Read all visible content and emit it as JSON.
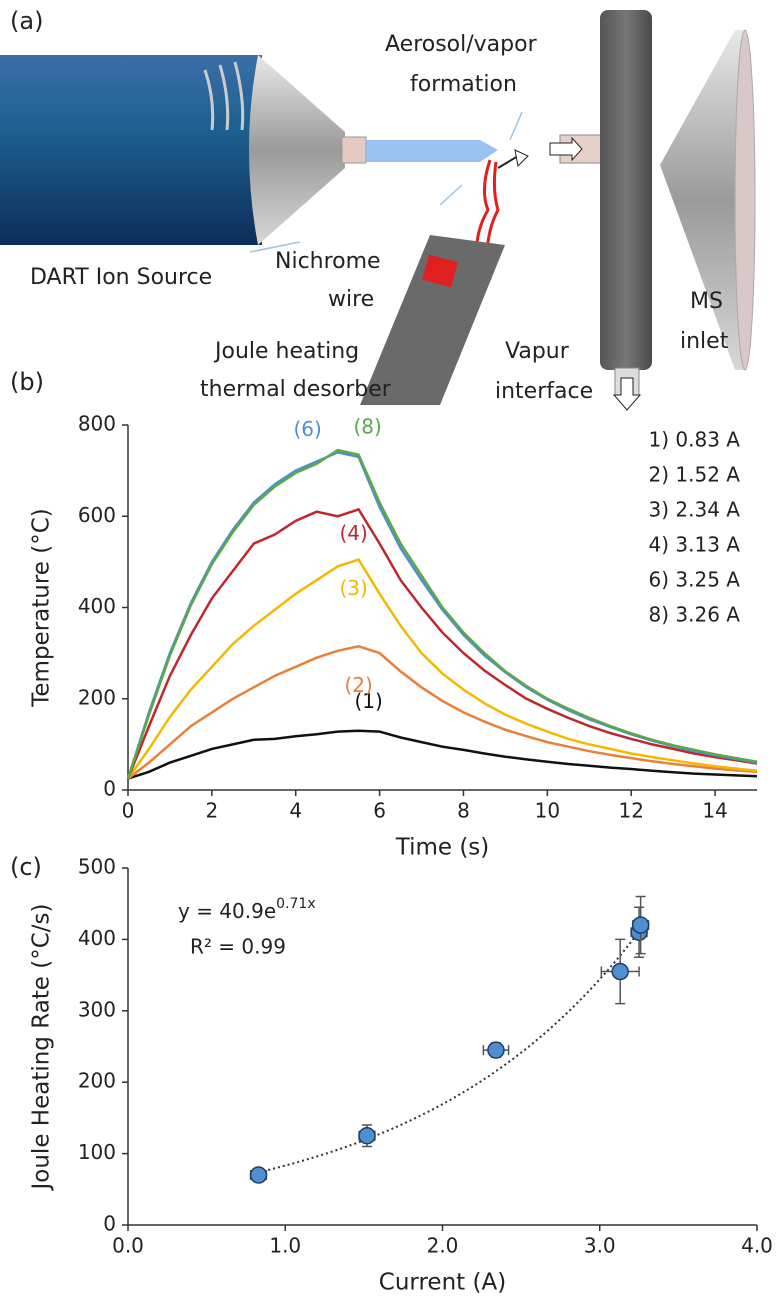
{
  "figure": {
    "panel_labels": [
      "(a)",
      "(b)",
      "(c)"
    ],
    "diagram": {
      "dart": "DART Ion Source",
      "aerosol": [
        "Aerosol/vapor",
        "formation"
      ],
      "nichrome": [
        "Nichrome",
        "wire"
      ],
      "desorber": [
        "Joule heating",
        "thermal desorber"
      ],
      "vapur": [
        "Vapur",
        "interface"
      ],
      "ms": [
        "MS",
        "inlet"
      ]
    }
  },
  "chart_data": [
    {
      "type": "line",
      "x_label": "Time (s)",
      "y_label": "Temperature (°C)",
      "x": [
        0,
        0.5,
        1,
        1.5,
        2,
        2.5,
        3,
        3.5,
        4,
        4.5,
        5,
        5.5,
        6,
        6.5,
        7,
        7.5,
        8,
        8.5,
        9,
        9.5,
        10,
        10.5,
        11,
        11.5,
        12,
        12.5,
        13,
        13.5,
        14,
        14.5,
        15
      ],
      "series": [
        {
          "name": "1) 0.83 A",
          "label": "(1)",
          "color": "#111111",
          "values": [
            25,
            40,
            60,
            75,
            90,
            100,
            110,
            112,
            118,
            122,
            128,
            130,
            128,
            115,
            105,
            95,
            88,
            80,
            73,
            67,
            62,
            57,
            53,
            49,
            46,
            42,
            39,
            36,
            34,
            32,
            30
          ]
        },
        {
          "name": "2) 1.52 A",
          "label": "(2)",
          "color": "#e8803a",
          "values": [
            25,
            60,
            100,
            140,
            170,
            200,
            225,
            250,
            270,
            290,
            305,
            315,
            300,
            260,
            225,
            195,
            170,
            150,
            132,
            118,
            105,
            95,
            85,
            77,
            70,
            63,
            57,
            52,
            47,
            43,
            40
          ]
        },
        {
          "name": "3) 2.34 A",
          "label": "(3)",
          "color": "#f5b800",
          "values": [
            25,
            90,
            160,
            220,
            270,
            320,
            360,
            395,
            430,
            460,
            490,
            505,
            430,
            360,
            300,
            255,
            220,
            190,
            165,
            145,
            128,
            112,
            100,
            90,
            80,
            72,
            65,
            58,
            52,
            47,
            42
          ]
        },
        {
          "name": "4) 3.13 A",
          "label": "(4)",
          "color": "#c0272d",
          "values": [
            25,
            140,
            250,
            340,
            420,
            480,
            540,
            560,
            590,
            610,
            600,
            615,
            540,
            460,
            400,
            345,
            300,
            262,
            230,
            200,
            178,
            158,
            140,
            125,
            112,
            100,
            90,
            80,
            72,
            65,
            58
          ]
        },
        {
          "name": "6) 3.25 A",
          "label": "(6)",
          "color": "#4f8fd0",
          "values": [
            25,
            170,
            300,
            410,
            500,
            570,
            630,
            670,
            700,
            720,
            740,
            730,
            620,
            530,
            460,
            395,
            340,
            295,
            258,
            225,
            198,
            175,
            155,
            138,
            122,
            108,
            96,
            85,
            76,
            68,
            60
          ]
        },
        {
          "name": "8) 3.26 A",
          "label": "(8)",
          "color": "#5aa84a",
          "values": [
            25,
            165,
            295,
            405,
            495,
            565,
            625,
            665,
            695,
            715,
            745,
            735,
            630,
            540,
            470,
            400,
            345,
            300,
            260,
            228,
            200,
            178,
            158,
            140,
            124,
            110,
            98,
            88,
            78,
            70,
            62
          ]
        }
      ],
      "xlim": [
        0,
        15
      ],
      "xticks": [
        0,
        2,
        4,
        6,
        8,
        10,
        12,
        14
      ],
      "ylim": [
        0,
        800
      ],
      "yticks": [
        0,
        200,
        400,
        600,
        800
      ]
    },
    {
      "type": "scatter",
      "x_label": "Current (A)",
      "y_label": "Joule Heating Rate (°C/s)",
      "equation": {
        "base": "y = 40.9e",
        "exponent": "0.71x"
      },
      "r_squared": "R² = 0.99",
      "fit": {
        "coefficient": 40.9,
        "rate": 0.71
      },
      "color": "#4f8fd0",
      "x": [
        0.83,
        1.52,
        2.34,
        3.13,
        3.25,
        3.26
      ],
      "values": [
        70,
        125,
        245,
        355,
        410,
        420
      ],
      "x_errors": [
        0.05,
        0.05,
        0.08,
        0.12,
        0.05,
        0.05
      ],
      "y_errors": [
        8,
        15,
        10,
        45,
        35,
        40
      ],
      "xlim": [
        0,
        4
      ],
      "xticks": [
        {
          "value": 0,
          "label": "0.0"
        },
        {
          "value": 1,
          "label": "1.0"
        },
        {
          "value": 2,
          "label": "2.0"
        },
        {
          "value": 3,
          "label": "3.0"
        },
        {
          "value": 4,
          "label": "4.0"
        }
      ],
      "ylim": [
        0,
        500
      ],
      "yticks": [
        0,
        100,
        200,
        300,
        400,
        500
      ]
    }
  ]
}
